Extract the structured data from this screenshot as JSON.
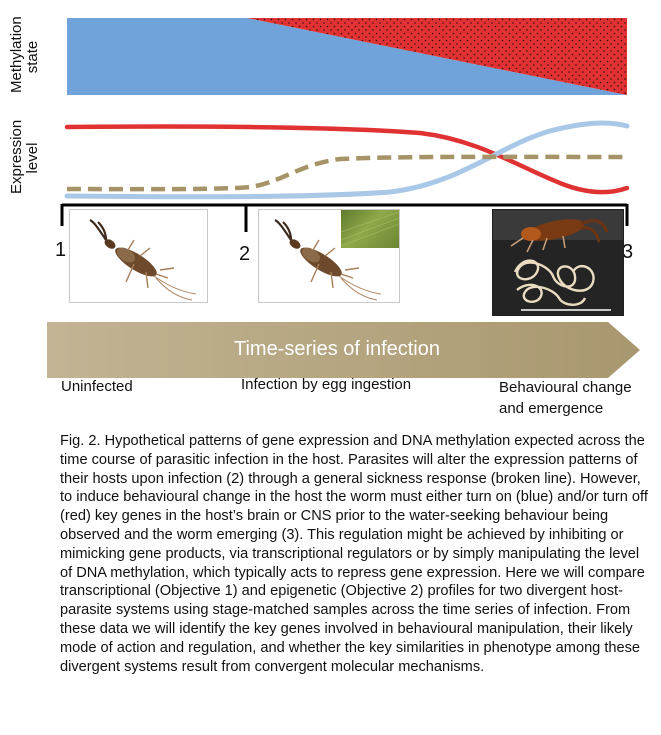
{
  "y_axis": {
    "top_label": "Methylation\nstate",
    "bottom_label": "Expression\nlevel"
  },
  "stages": [
    {
      "number": "1",
      "label": "Uninfected"
    },
    {
      "number": "2",
      "label": "Infection by egg ingestion"
    },
    {
      "number": "3",
      "label": "Behavioural change\nand emergence"
    }
  ],
  "arrow_label": "Time-series of infection",
  "legend_lines": {
    "on_genes": "blue",
    "off_genes": "red",
    "sickness_response": "broken line"
  },
  "colors": {
    "blue": "#6fa3d9",
    "light_blue": "#a9c7e6",
    "red": "#e03232",
    "dashed": "#a69468",
    "arrow": "#b5a585",
    "frame": "#000000"
  },
  "icons": [
    "earwig-image",
    "earwig-image",
    "earwig-with-hairworm-image",
    "leaf-image"
  ],
  "caption": "Fig. 2. Hypothetical patterns of gene expression and DNA methylation expected across the time course of parasitic infection in the host.  Parasites will alter the expression patterns of their hosts upon infection (2) through a general sickness response (broken line). However, to induce behavioural change in the host the worm must either turn on (blue) and/or turn off (red) key genes in the host’s brain or CNS prior to the water-seeking behaviour being observed and the worm emerging (3). This regulation might be achieved by inhibiting or mimicking gene products, via transcriptional regulators or by simply manipulating  the level of DNA methylation, which typically acts to repress gene expression.  Here we will compare transcriptional (Objective 1)  and epigenetic  (Objective 2) profiles for two divergent host-parasite systems using stage-matched samples across the time series of infection. From these data we will identify the key genes involved in behavioural manipulation, their likely mode of action and regulation, and whether the key similarities in phenotype among these divergent systems result from convergent molecular mechanisms."
}
